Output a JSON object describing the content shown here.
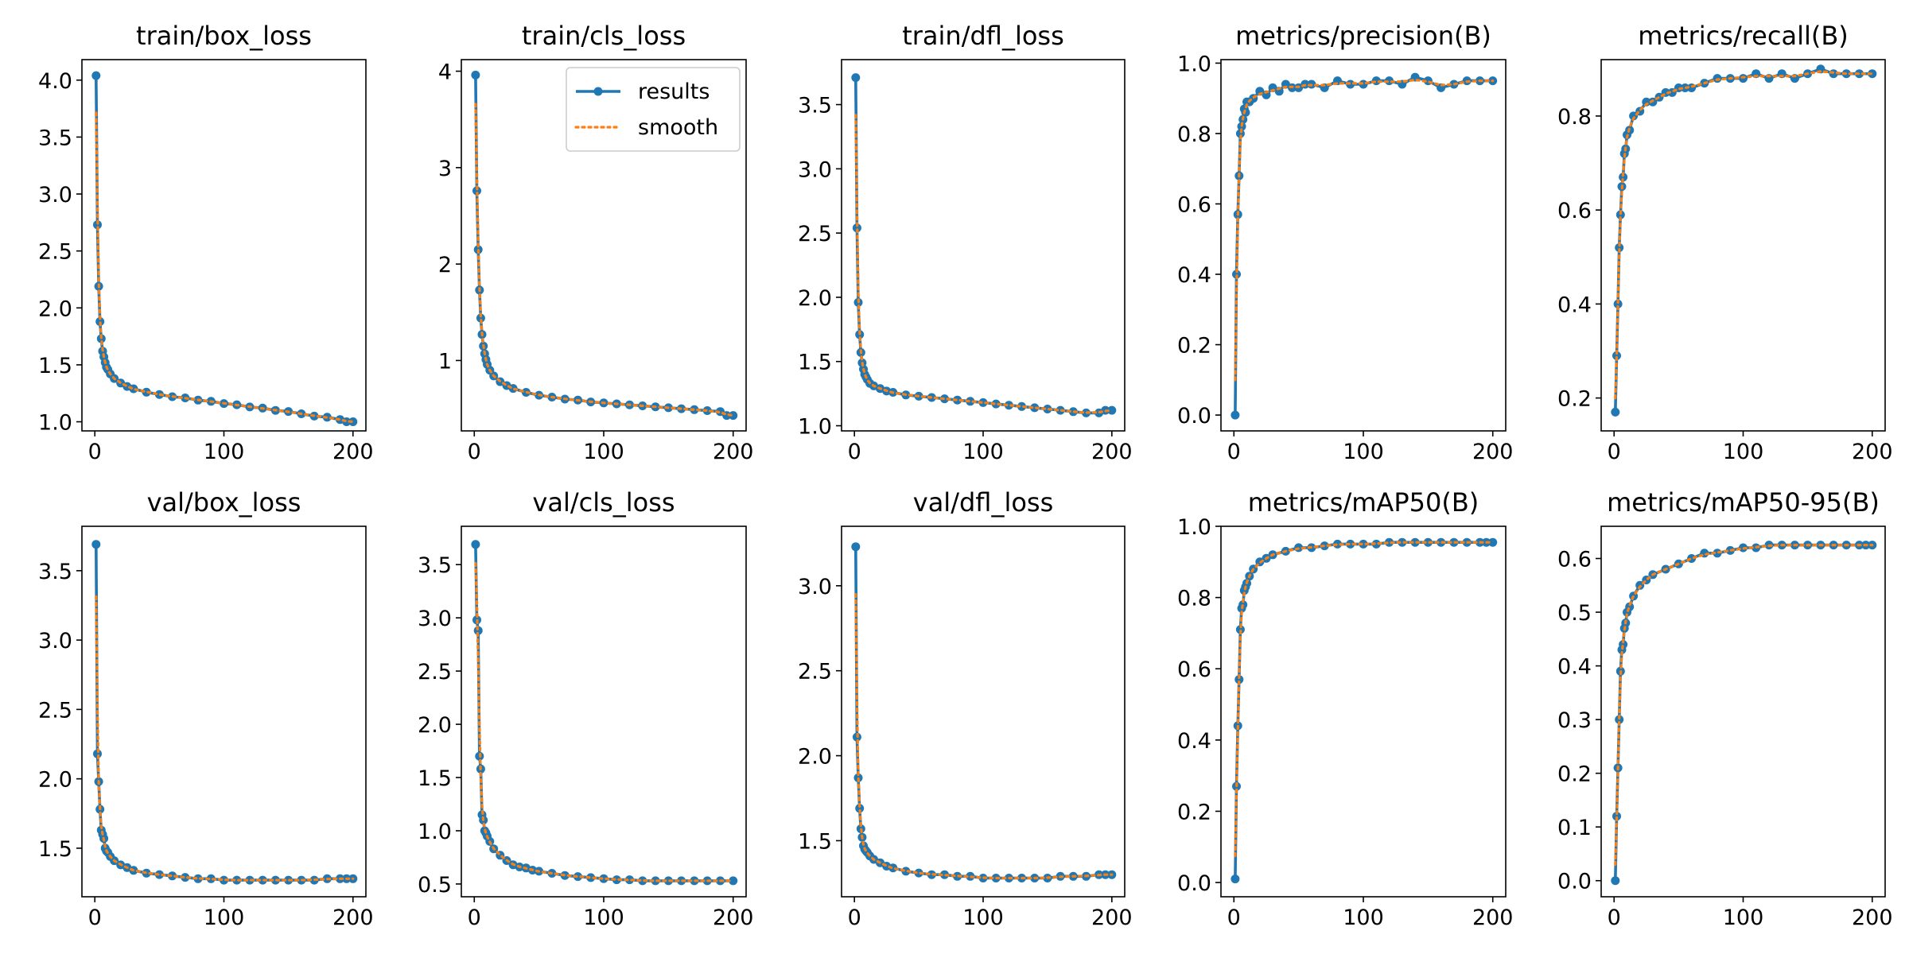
{
  "chart_data": [
    {
      "type": "line",
      "title": "train/box_loss",
      "xlim": [
        -10,
        210
      ],
      "ylim": [
        0.92,
        4.18
      ],
      "xticks": [
        0,
        100,
        200
      ],
      "yticks": [
        1.0,
        1.5,
        2.0,
        2.5,
        3.0,
        3.5,
        4.0
      ],
      "ytick_labels": [
        "1.0",
        "1.5",
        "2.0",
        "2.5",
        "3.0",
        "3.5",
        "4.0"
      ],
      "series": [
        {
          "name": "results",
          "x": [
            1,
            2,
            3,
            4,
            5,
            6,
            7,
            8,
            9,
            10,
            12,
            15,
            20,
            25,
            30,
            40,
            50,
            60,
            70,
            80,
            90,
            100,
            110,
            120,
            130,
            140,
            150,
            160,
            170,
            180,
            190,
            195,
            200
          ],
          "values": [
            4.04,
            2.73,
            2.19,
            1.88,
            1.73,
            1.62,
            1.57,
            1.52,
            1.48,
            1.46,
            1.42,
            1.38,
            1.34,
            1.31,
            1.29,
            1.26,
            1.24,
            1.22,
            1.21,
            1.19,
            1.18,
            1.16,
            1.15,
            1.13,
            1.12,
            1.1,
            1.09,
            1.07,
            1.05,
            1.04,
            1.02,
            1.0,
            1.0
          ]
        }
      ]
    },
    {
      "type": "line",
      "title": "train/cls_loss",
      "xlim": [
        -10,
        210
      ],
      "ylim": [
        0.27,
        4.12
      ],
      "xticks": [
        0,
        100,
        200
      ],
      "yticks": [
        1,
        2,
        3,
        4
      ],
      "ytick_labels": [
        "1",
        "2",
        "3",
        "4"
      ],
      "legend": {
        "position": "upper right",
        "entries": [
          "results",
          "smooth"
        ]
      },
      "series": [
        {
          "name": "results",
          "x": [
            1,
            2,
            3,
            4,
            5,
            6,
            7,
            8,
            9,
            10,
            12,
            15,
            20,
            25,
            30,
            40,
            50,
            60,
            70,
            80,
            90,
            100,
            110,
            120,
            130,
            140,
            150,
            160,
            170,
            180,
            190,
            195,
            200
          ],
          "values": [
            3.96,
            2.76,
            2.15,
            1.73,
            1.44,
            1.27,
            1.15,
            1.07,
            1.01,
            0.96,
            0.9,
            0.84,
            0.78,
            0.74,
            0.71,
            0.67,
            0.64,
            0.62,
            0.6,
            0.59,
            0.57,
            0.56,
            0.55,
            0.54,
            0.53,
            0.52,
            0.51,
            0.5,
            0.49,
            0.48,
            0.47,
            0.43,
            0.43
          ]
        }
      ]
    },
    {
      "type": "line",
      "title": "train/dfl_loss",
      "xlim": [
        -10,
        210
      ],
      "ylim": [
        0.96,
        3.85
      ],
      "xticks": [
        0,
        100,
        200
      ],
      "yticks": [
        1.0,
        1.5,
        2.0,
        2.5,
        3.0,
        3.5
      ],
      "ytick_labels": [
        "1.0",
        "1.5",
        "2.0",
        "2.5",
        "3.0",
        "3.5"
      ],
      "series": [
        {
          "name": "results",
          "x": [
            1,
            2,
            3,
            4,
            5,
            6,
            7,
            8,
            9,
            10,
            12,
            15,
            20,
            25,
            30,
            40,
            50,
            60,
            70,
            80,
            90,
            100,
            110,
            120,
            130,
            140,
            150,
            160,
            170,
            180,
            190,
            195,
            200
          ],
          "values": [
            3.71,
            2.54,
            1.96,
            1.71,
            1.57,
            1.49,
            1.44,
            1.4,
            1.38,
            1.36,
            1.33,
            1.31,
            1.29,
            1.27,
            1.26,
            1.24,
            1.23,
            1.22,
            1.21,
            1.2,
            1.19,
            1.18,
            1.17,
            1.16,
            1.15,
            1.14,
            1.13,
            1.12,
            1.11,
            1.1,
            1.1,
            1.12,
            1.12
          ]
        }
      ]
    },
    {
      "type": "line",
      "title": "metrics/precision(B)",
      "xlim": [
        -10,
        210
      ],
      "ylim": [
        -0.045,
        1.01
      ],
      "xticks": [
        0,
        100,
        200
      ],
      "yticks": [
        0.0,
        0.2,
        0.4,
        0.6,
        0.8,
        1.0
      ],
      "ytick_labels": [
        "0.0",
        "0.2",
        "0.4",
        "0.6",
        "0.8",
        "1.0"
      ],
      "series": [
        {
          "name": "results",
          "x": [
            1,
            2,
            3,
            4,
            5,
            6,
            7,
            8,
            9,
            10,
            12,
            15,
            20,
            25,
            30,
            35,
            40,
            45,
            50,
            55,
            60,
            70,
            80,
            90,
            100,
            110,
            120,
            130,
            140,
            150,
            160,
            170,
            180,
            190,
            200
          ],
          "values": [
            0.0,
            0.4,
            0.57,
            0.68,
            0.8,
            0.82,
            0.84,
            0.87,
            0.86,
            0.89,
            0.89,
            0.9,
            0.92,
            0.91,
            0.93,
            0.92,
            0.94,
            0.93,
            0.93,
            0.94,
            0.94,
            0.93,
            0.95,
            0.94,
            0.94,
            0.95,
            0.95,
            0.94,
            0.96,
            0.95,
            0.93,
            0.94,
            0.95,
            0.95,
            0.95
          ]
        }
      ]
    },
    {
      "type": "line",
      "title": "metrics/recall(B)",
      "xlim": [
        -10,
        210
      ],
      "ylim": [
        0.13,
        0.92
      ],
      "xticks": [
        0,
        100,
        200
      ],
      "yticks": [
        0.2,
        0.4,
        0.6,
        0.8
      ],
      "ytick_labels": [
        "0.2",
        "0.4",
        "0.6",
        "0.8"
      ],
      "series": [
        {
          "name": "results",
          "x": [
            1,
            2,
            3,
            4,
            5,
            6,
            7,
            8,
            9,
            10,
            12,
            15,
            20,
            25,
            30,
            35,
            40,
            45,
            50,
            55,
            60,
            70,
            80,
            90,
            100,
            110,
            120,
            130,
            140,
            150,
            160,
            170,
            180,
            190,
            200
          ],
          "values": [
            0.17,
            0.29,
            0.4,
            0.52,
            0.59,
            0.65,
            0.67,
            0.72,
            0.73,
            0.76,
            0.77,
            0.8,
            0.81,
            0.83,
            0.83,
            0.84,
            0.85,
            0.85,
            0.86,
            0.86,
            0.86,
            0.87,
            0.88,
            0.88,
            0.88,
            0.89,
            0.88,
            0.89,
            0.88,
            0.89,
            0.9,
            0.89,
            0.89,
            0.89,
            0.89
          ]
        }
      ]
    },
    {
      "type": "line",
      "title": "val/box_loss",
      "xlim": [
        -10,
        210
      ],
      "ylim": [
        1.15,
        3.82
      ],
      "xticks": [
        0,
        100,
        200
      ],
      "yticks": [
        1.5,
        2.0,
        2.5,
        3.0,
        3.5
      ],
      "ytick_labels": [
        "1.5",
        "2.0",
        "2.5",
        "3.0",
        "3.5"
      ],
      "series": [
        {
          "name": "results",
          "x": [
            1,
            2,
            3,
            4,
            5,
            6,
            7,
            8,
            9,
            10,
            12,
            15,
            20,
            25,
            30,
            40,
            50,
            60,
            70,
            80,
            90,
            100,
            110,
            120,
            130,
            140,
            150,
            160,
            170,
            180,
            190,
            195,
            200
          ],
          "values": [
            3.69,
            2.18,
            1.98,
            1.78,
            1.63,
            1.6,
            1.57,
            1.5,
            1.48,
            1.47,
            1.44,
            1.41,
            1.38,
            1.36,
            1.34,
            1.32,
            1.31,
            1.3,
            1.29,
            1.28,
            1.28,
            1.27,
            1.27,
            1.27,
            1.27,
            1.27,
            1.27,
            1.27,
            1.27,
            1.28,
            1.28,
            1.28,
            1.28
          ]
        }
      ]
    },
    {
      "type": "line",
      "title": "val/cls_loss",
      "xlim": [
        -10,
        210
      ],
      "ylim": [
        0.38,
        3.86
      ],
      "xticks": [
        0,
        100,
        200
      ],
      "yticks": [
        0.5,
        1.0,
        1.5,
        2.0,
        2.5,
        3.0,
        3.5
      ],
      "ytick_labels": [
        "0.5",
        "1.0",
        "1.5",
        "2.0",
        "2.5",
        "3.0",
        "3.5"
      ],
      "series": [
        {
          "name": "results",
          "x": [
            1,
            2,
            3,
            4,
            5,
            6,
            7,
            8,
            9,
            10,
            12,
            15,
            20,
            25,
            30,
            35,
            40,
            45,
            50,
            60,
            70,
            80,
            90,
            100,
            110,
            120,
            130,
            140,
            150,
            160,
            170,
            180,
            190,
            200
          ],
          "values": [
            3.69,
            2.98,
            2.88,
            1.7,
            1.58,
            1.15,
            1.1,
            1.0,
            0.98,
            0.95,
            0.9,
            0.83,
            0.77,
            0.72,
            0.68,
            0.66,
            0.65,
            0.63,
            0.62,
            0.6,
            0.58,
            0.57,
            0.56,
            0.55,
            0.54,
            0.54,
            0.53,
            0.53,
            0.53,
            0.53,
            0.53,
            0.53,
            0.53,
            0.53
          ]
        }
      ]
    },
    {
      "type": "line",
      "title": "val/dfl_loss",
      "xlim": [
        -10,
        210
      ],
      "ylim": [
        1.17,
        3.35
      ],
      "xticks": [
        0,
        100,
        200
      ],
      "yticks": [
        1.5,
        2.0,
        2.5,
        3.0
      ],
      "ytick_labels": [
        "1.5",
        "2.0",
        "2.5",
        "3.0"
      ],
      "series": [
        {
          "name": "results",
          "x": [
            1,
            2,
            3,
            4,
            5,
            6,
            7,
            8,
            9,
            10,
            12,
            15,
            20,
            25,
            30,
            40,
            50,
            60,
            70,
            80,
            90,
            100,
            110,
            120,
            130,
            140,
            150,
            160,
            170,
            180,
            190,
            195,
            200
          ],
          "values": [
            3.23,
            2.11,
            1.87,
            1.69,
            1.57,
            1.52,
            1.47,
            1.45,
            1.44,
            1.43,
            1.41,
            1.39,
            1.37,
            1.35,
            1.34,
            1.32,
            1.31,
            1.3,
            1.3,
            1.29,
            1.29,
            1.28,
            1.28,
            1.28,
            1.28,
            1.28,
            1.28,
            1.29,
            1.29,
            1.29,
            1.3,
            1.3,
            1.3
          ]
        }
      ]
    },
    {
      "type": "line",
      "title": "metrics/mAP50(B)",
      "xlim": [
        -10,
        210
      ],
      "ylim": [
        -0.04,
        1.0
      ],
      "xticks": [
        0,
        100,
        200
      ],
      "yticks": [
        0.0,
        0.2,
        0.4,
        0.6,
        0.8,
        1.0
      ],
      "ytick_labels": [
        "0.0",
        "0.2",
        "0.4",
        "0.6",
        "0.8",
        "1.0"
      ],
      "series": [
        {
          "name": "results",
          "x": [
            1,
            2,
            3,
            4,
            5,
            6,
            7,
            8,
            9,
            10,
            12,
            15,
            20,
            25,
            30,
            40,
            50,
            60,
            70,
            80,
            90,
            100,
            110,
            120,
            130,
            140,
            150,
            160,
            170,
            180,
            190,
            195,
            200
          ],
          "values": [
            0.01,
            0.27,
            0.44,
            0.57,
            0.71,
            0.77,
            0.78,
            0.82,
            0.83,
            0.84,
            0.86,
            0.88,
            0.9,
            0.91,
            0.92,
            0.93,
            0.94,
            0.94,
            0.945,
            0.95,
            0.95,
            0.95,
            0.95,
            0.955,
            0.955,
            0.955,
            0.955,
            0.955,
            0.955,
            0.955,
            0.955,
            0.955,
            0.955
          ]
        }
      ]
    },
    {
      "type": "line",
      "title": "metrics/mAP50-95(B)",
      "xlim": [
        -10,
        210
      ],
      "ylim": [
        -0.03,
        0.66
      ],
      "xticks": [
        0,
        100,
        200
      ],
      "yticks": [
        0.0,
        0.1,
        0.2,
        0.3,
        0.4,
        0.5,
        0.6
      ],
      "ytick_labels": [
        "0.0",
        "0.1",
        "0.2",
        "0.3",
        "0.4",
        "0.5",
        "0.6"
      ],
      "series": [
        {
          "name": "results",
          "x": [
            1,
            2,
            3,
            4,
            5,
            6,
            7,
            8,
            9,
            10,
            12,
            15,
            20,
            25,
            30,
            40,
            50,
            60,
            70,
            80,
            90,
            100,
            110,
            120,
            130,
            140,
            150,
            160,
            170,
            180,
            190,
            195,
            200
          ],
          "values": [
            0.0,
            0.12,
            0.21,
            0.3,
            0.39,
            0.43,
            0.44,
            0.47,
            0.48,
            0.5,
            0.51,
            0.53,
            0.55,
            0.56,
            0.57,
            0.58,
            0.59,
            0.6,
            0.61,
            0.61,
            0.615,
            0.62,
            0.62,
            0.625,
            0.625,
            0.625,
            0.625,
            0.625,
            0.625,
            0.625,
            0.625,
            0.625,
            0.625
          ]
        }
      ]
    }
  ],
  "legend": {
    "results": "results",
    "smooth": "smooth"
  },
  "colors": {
    "results": "#1f77b4",
    "smooth": "#ff7f0e"
  }
}
